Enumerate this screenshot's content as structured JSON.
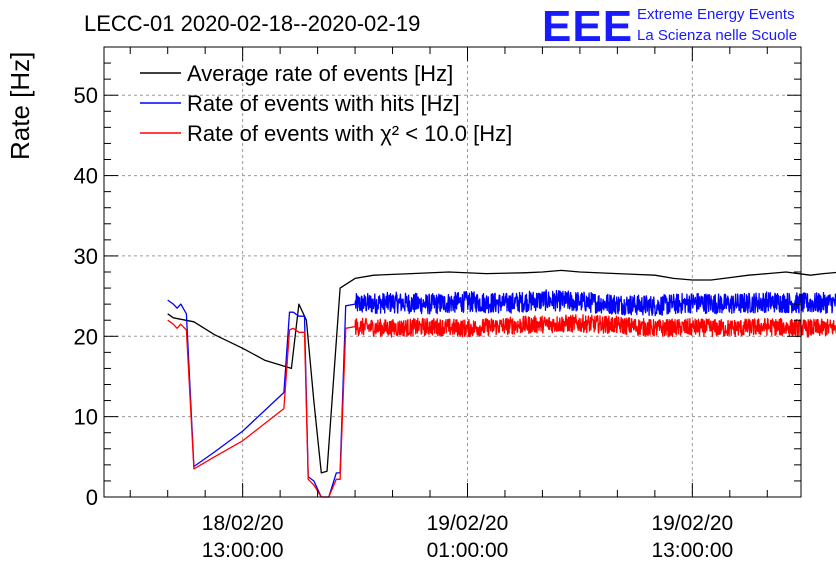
{
  "chart_data": {
    "type": "line",
    "title": "LECC-01 2020-02-18--2020-02-19",
    "logo": {
      "mark": "EEE",
      "line1": "Extreme Energy Events",
      "line2": "La Scienza nelle Scuole"
    },
    "ylabel": "Rate [Hz]",
    "xlabel": "",
    "ylim": [
      0,
      56
    ],
    "yticks": [
      "0",
      "10",
      "20",
      "30",
      "40",
      "50"
    ],
    "xlim_hours": [
      2.6,
      39.8
    ],
    "xticks": [
      {
        "hour": 10,
        "line1": "18/02/20",
        "line2": "13:00:00"
      },
      {
        "hour": 22,
        "line1": "19/02/20",
        "line2": "01:00:00"
      },
      {
        "hour": 34,
        "line1": "19/02/20",
        "line2": "13:00:00"
      }
    ],
    "grid": true,
    "legend_position": "top-left",
    "series": [
      {
        "name": "Average rate of events [Hz]",
        "color": "#000000",
        "x": [
          6.0,
          6.3,
          7.4,
          8.5,
          10.0,
          11.2,
          12.6,
          13.0,
          13.4,
          13.8,
          14.2,
          14.5,
          15.2,
          16.0,
          17.0,
          19.0,
          21.0,
          23.0,
          25.0,
          26.0,
          27.0,
          28.0,
          30.0,
          32.0,
          33.0,
          34.0,
          35.0,
          36.0,
          37.0,
          38.0,
          39.0,
          40.3,
          41.0,
          42.0
        ],
        "y": [
          22.8,
          22.3,
          21.8,
          20.2,
          18.5,
          17.0,
          16.0,
          24.0,
          22.0,
          12.0,
          3.0,
          3.2,
          26.0,
          27.2,
          27.6,
          27.8,
          28.0,
          27.8,
          27.9,
          28.0,
          28.2,
          28.0,
          27.8,
          27.6,
          27.2,
          27.0,
          27.0,
          27.3,
          27.6,
          27.8,
          28.0,
          27.6,
          27.8,
          28.0
        ]
      },
      {
        "name": "Rate of events with hits [Hz]",
        "color": "#0000ff",
        "x": [
          6.0,
          6.3,
          6.5,
          6.7,
          7.0,
          7.4,
          8.5,
          10.0,
          12.2,
          12.5,
          12.7,
          13.0,
          13.3,
          13.5,
          13.8,
          14.2,
          14.6,
          15.0,
          15.2,
          15.5,
          16.0,
          18.0,
          20.0,
          22.0,
          24.0,
          26.0,
          28.0,
          30.0,
          32.0,
          34.0,
          36.0,
          38.0,
          40.0,
          42.0
        ],
        "y": [
          24.5,
          24.0,
          23.5,
          24.0,
          22.8,
          3.8,
          5.6,
          8.2,
          13.0,
          23.0,
          23.0,
          22.5,
          22.5,
          2.5,
          2.0,
          0.0,
          0.0,
          3.0,
          3.0,
          23.8,
          24.0,
          24.2,
          24.0,
          24.3,
          24.1,
          24.5,
          24.3,
          24.0,
          23.8,
          24.2,
          24.0,
          24.3,
          24.1,
          24.2
        ]
      },
      {
        "name": "Rate of events with χ² < 10.0 [Hz]",
        "color": "#ff0000",
        "x": [
          6.0,
          6.3,
          6.5,
          6.7,
          7.0,
          7.4,
          8.5,
          10.0,
          12.2,
          12.5,
          12.7,
          13.0,
          13.3,
          13.5,
          13.8,
          14.2,
          14.6,
          15.0,
          15.2,
          15.5,
          16.0,
          18.0,
          20.0,
          22.0,
          24.0,
          26.0,
          28.0,
          30.0,
          32.0,
          34.0,
          36.0,
          38.0,
          40.0,
          42.0
        ],
        "y": [
          22.0,
          21.5,
          21.0,
          21.5,
          20.8,
          3.5,
          5.0,
          7.0,
          11.0,
          20.8,
          21.0,
          20.5,
          20.5,
          2.2,
          1.5,
          0.0,
          0.0,
          2.2,
          2.2,
          21.0,
          21.2,
          21.0,
          21.2,
          21.0,
          21.3,
          21.5,
          21.6,
          21.4,
          21.0,
          21.1,
          21.0,
          21.2,
          21.0,
          21.1
        ]
      }
    ]
  }
}
